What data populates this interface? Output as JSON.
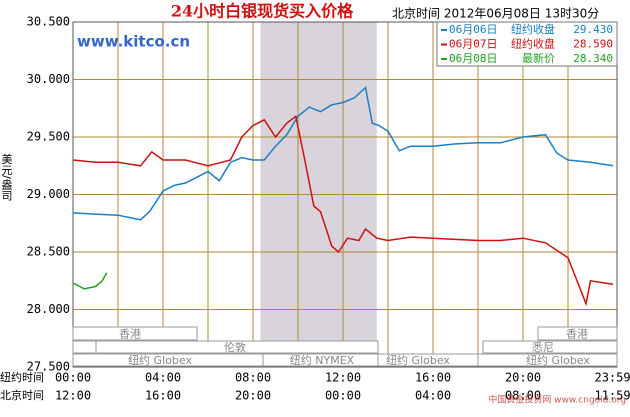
{
  "chart_data": {
    "type": "line",
    "title": "24小时白银现货买入价格",
    "subtitle": "北京时间 2012年06月08日 13时30分",
    "source": "www.kitco.cn",
    "watermark": "中国黄金投资网 www.cngold.org",
    "y_label": "美元/盎司",
    "x_label": "纽约时间",
    "x2_label": "北京时间",
    "xlim": [
      0,
      24
    ],
    "xticks": [
      {
        "value": 0,
        "label": "00:00"
      },
      {
        "value": 4,
        "label": "04:00"
      },
      {
        "value": 8,
        "label": "08:00"
      },
      {
        "value": 12,
        "label": "12:00"
      },
      {
        "value": 16,
        "label": "16:00"
      },
      {
        "value": 20,
        "label": "20:00"
      },
      {
        "value": 23.98,
        "label": "23:59"
      }
    ],
    "x2ticks": [
      {
        "value": 0,
        "label": "12:00"
      },
      {
        "value": 4,
        "label": "16:00"
      },
      {
        "value": 8,
        "label": "20:00"
      },
      {
        "value": 12,
        "label": "00:00"
      },
      {
        "value": 16,
        "label": "04:00"
      },
      {
        "value": 20,
        "label": "08:00"
      },
      {
        "value": 23.98,
        "label": "11:59"
      }
    ],
    "xgrid": [
      2,
      4,
      6,
      8,
      10,
      12,
      14,
      16,
      18,
      20,
      22
    ],
    "ylim": [
      27.5,
      30.5
    ],
    "yticks": [
      {
        "value": 30.5,
        "label": "30.500"
      },
      {
        "value": 30,
        "label": "30.000"
      },
      {
        "value": 29.5,
        "label": "29.500"
      },
      {
        "value": 29,
        "label": "29.000"
      },
      {
        "value": 28.5,
        "label": "28.500"
      },
      {
        "value": 28,
        "label": "28.000"
      },
      {
        "value": 27.5,
        "label": "27.500"
      }
    ],
    "grid": true,
    "highlight": [
      8.33,
      13.5
    ],
    "sessions": [
      "香港",
      "香港",
      "伦敦",
      "悉尼",
      "纽约 Globex",
      "纽约 NYMEX",
      "纽约 Globex",
      "纽约 Globex"
    ],
    "series": [
      {
        "name": "06月06日",
        "tag": "纽约收盘",
        "legend_value": {
          "value": 29.43,
          "label": "29.430"
        },
        "color": "#1a7fc4",
        "x": [
          0,
          1,
          2,
          2.5,
          3,
          3.4,
          3.8,
          4,
          4.5,
          5,
          5.5,
          6,
          6.5,
          7,
          7.5,
          8,
          8.5,
          9,
          9.5,
          10,
          10.5,
          11,
          11.5,
          12,
          12.5,
          13,
          13.3,
          13.6,
          14,
          14.5,
          15,
          16,
          17,
          18,
          19,
          20,
          21,
          21.5,
          22,
          23,
          24
        ],
        "values": [
          28.84,
          28.83,
          28.82,
          28.8,
          28.78,
          28.85,
          28.97,
          29.03,
          29.08,
          29.1,
          29.15,
          29.2,
          29.12,
          29.28,
          29.32,
          29.3,
          29.3,
          29.42,
          29.52,
          29.68,
          29.76,
          29.72,
          29.78,
          29.8,
          29.84,
          29.93,
          29.62,
          29.6,
          29.55,
          29.38,
          29.42,
          29.42,
          29.44,
          29.45,
          29.45,
          29.5,
          29.52,
          29.36,
          29.3,
          29.28,
          29.25
        ]
      },
      {
        "name": "06月07日",
        "tag": "纽约收盘",
        "legend_value": {
          "value": 28.59,
          "label": "28.590"
        },
        "color": "#cc1111",
        "x": [
          0,
          1,
          2,
          3,
          3.5,
          4,
          5,
          6,
          7,
          7.5,
          8,
          8.5,
          9,
          9.5,
          9.9,
          10.3,
          10.7,
          11,
          11.5,
          11.8,
          12.2,
          12.7,
          13,
          13.5,
          14,
          15,
          16,
          18,
          19,
          20,
          21,
          22,
          22.5,
          22.8,
          23,
          24
        ],
        "values": [
          29.3,
          29.28,
          29.28,
          29.25,
          29.37,
          29.3,
          29.3,
          29.25,
          29.3,
          29.5,
          29.6,
          29.65,
          29.5,
          29.62,
          29.68,
          29.3,
          28.9,
          28.85,
          28.55,
          28.5,
          28.62,
          28.6,
          28.7,
          28.62,
          28.6,
          28.63,
          28.62,
          28.6,
          28.6,
          28.62,
          28.58,
          28.45,
          28.2,
          28.05,
          28.25,
          28.22
        ]
      },
      {
        "name": "06月08日",
        "tag": "最新价",
        "legend_value": {
          "value": 28.34,
          "label": "28.340"
        },
        "color": "#22a022",
        "x": [
          0,
          0.5,
          1,
          1.3,
          1.5
        ],
        "values": [
          28.23,
          28.18,
          28.2,
          28.25,
          28.32
        ]
      }
    ]
  }
}
